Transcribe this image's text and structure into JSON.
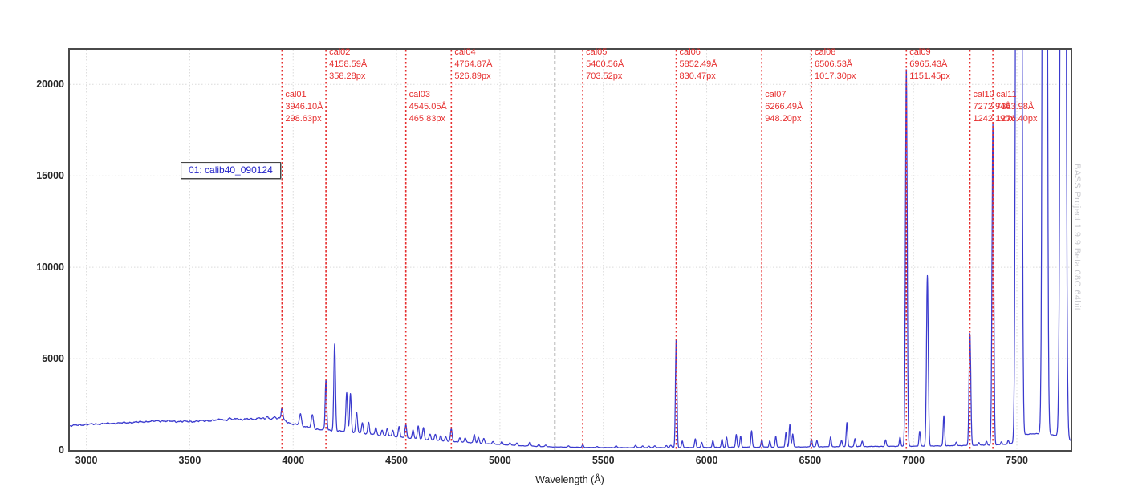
{
  "legend": {
    "text": "01: calib40_090124"
  },
  "watermark": {
    "text": "BASS Project 1.9.9 Beta 08C 64bit"
  },
  "colors": {
    "spectrum": "#3a3ace",
    "calibration_line": "#e62e2e",
    "cursor_line": "#141414",
    "grid": "#dadada",
    "axis_border": "#4a4a4a",
    "tick_text": "#262626",
    "legend_text": "#2424c8",
    "watermark_text": "#c8c8cd"
  },
  "chart_data": {
    "type": "line",
    "title": "",
    "xlabel": "Wavelength (Å)",
    "ylabel": "",
    "xlim": [
      2920,
      7760
    ],
    "ylim": [
      0,
      21900
    ],
    "x_ticks": [
      3000,
      3500,
      4000,
      4500,
      5000,
      5500,
      6000,
      6500,
      7000,
      7500
    ],
    "y_ticks": [
      0,
      5000,
      10000,
      15000,
      20000
    ],
    "grid": true,
    "legend_position": "top-left-inside",
    "series_name": "01: calib40_090124",
    "cursor_marker": {
      "wavelength": 5266
    },
    "cal_markers": [
      {
        "id": "cal01",
        "wl": 3946.1,
        "wavelength_A": "3946.10Å",
        "pixel_pos": "298.63px",
        "label_row": 2
      },
      {
        "id": "cal02",
        "wl": 4158.59,
        "wavelength_A": "4158.59Å",
        "pixel_pos": "358.28px",
        "label_row": 1
      },
      {
        "id": "cal03",
        "wl": 4545.05,
        "wavelength_A": "4545.05Å",
        "pixel_pos": "465.83px",
        "label_row": 2
      },
      {
        "id": "cal04",
        "wl": 4764.87,
        "wavelength_A": "4764.87Å",
        "pixel_pos": "526.89px",
        "label_row": 1
      },
      {
        "id": "cal05",
        "wl": 5400.56,
        "wavelength_A": "5400.56Å",
        "pixel_pos": "703.52px",
        "label_row": 1
      },
      {
        "id": "cal06",
        "wl": 5852.49,
        "wavelength_A": "5852.49Å",
        "pixel_pos": "830.47px",
        "label_row": 1
      },
      {
        "id": "cal07",
        "wl": 6266.49,
        "wavelength_A": "6266.49Å",
        "pixel_pos": "948.20px",
        "label_row": 2
      },
      {
        "id": "cal08",
        "wl": 6506.53,
        "wavelength_A": "6506.53Å",
        "pixel_pos": "1017.30px",
        "label_row": 1
      },
      {
        "id": "cal09",
        "wl": 6965.43,
        "wavelength_A": "6965.43Å",
        "pixel_pos": "1151.45px",
        "label_row": 1
      },
      {
        "id": "cal10",
        "wl": 7272.94,
        "wavelength_A": "7272.94Å",
        "pixel_pos": "1242.19px",
        "label_row": 2
      },
      {
        "id": "cal11",
        "wl": 7383.98,
        "wavelength_A": "7383.98Å",
        "pixel_pos": "1276.40px",
        "label_row": 2
      }
    ],
    "continuum_points": [
      [
        2920,
        1330
      ],
      [
        3000,
        1400
      ],
      [
        3100,
        1450
      ],
      [
        3200,
        1500
      ],
      [
        3300,
        1560
      ],
      [
        3350,
        1600
      ],
      [
        3420,
        1570
      ],
      [
        3500,
        1560
      ],
      [
        3600,
        1620
      ],
      [
        3700,
        1660
      ],
      [
        3800,
        1700
      ],
      [
        3900,
        1730
      ],
      [
        3950,
        1700
      ],
      [
        3990,
        1420
      ],
      [
        4030,
        1380
      ],
      [
        4060,
        1280
      ],
      [
        4110,
        1150
      ],
      [
        4160,
        1100
      ],
      [
        4210,
        1050
      ],
      [
        4260,
        1000
      ],
      [
        4320,
        950
      ],
      [
        4400,
        820
      ],
      [
        4500,
        720
      ],
      [
        4600,
        620
      ],
      [
        4700,
        520
      ],
      [
        4800,
        440
      ],
      [
        4900,
        380
      ],
      [
        5000,
        300
      ],
      [
        5100,
        240
      ],
      [
        5200,
        190
      ],
      [
        5300,
        160
      ],
      [
        5450,
        140
      ],
      [
        5600,
        130
      ],
      [
        5750,
        135
      ],
      [
        5900,
        140
      ],
      [
        6050,
        145
      ],
      [
        6200,
        155
      ],
      [
        6350,
        160
      ],
      [
        6500,
        175
      ],
      [
        6650,
        185
      ],
      [
        6800,
        195
      ],
      [
        6950,
        210
      ],
      [
        7100,
        220
      ],
      [
        7250,
        250
      ],
      [
        7400,
        280
      ],
      [
        7430,
        300
      ],
      [
        7455,
        330
      ],
      [
        7480,
        380
      ],
      [
        7495,
        600
      ],
      [
        7545,
        850
      ],
      [
        7575,
        880
      ],
      [
        7600,
        900
      ],
      [
        7660,
        850
      ],
      [
        7690,
        800
      ],
      [
        7740,
        600
      ],
      [
        7760,
        520
      ]
    ],
    "emission_peaks": [
      [
        3650,
        70,
        6
      ],
      [
        3694,
        80,
        5
      ],
      [
        3729,
        90,
        5
      ],
      [
        3834,
        90,
        4
      ],
      [
        3875,
        100,
        4
      ],
      [
        3911,
        110,
        4
      ],
      [
        3946.1,
        640,
        4
      ],
      [
        4035,
        620,
        5
      ],
      [
        4093,
        730,
        5
      ],
      [
        4158.59,
        2750,
        3.6
      ],
      [
        4200.67,
        4760,
        4
      ],
      [
        4259,
        2150,
        4
      ],
      [
        4277,
        2120,
        4
      ],
      [
        4307,
        1080,
        4
      ],
      [
        4335,
        560,
        4
      ],
      [
        4365,
        640,
        4
      ],
      [
        4400,
        430,
        4
      ],
      [
        4430,
        330,
        4
      ],
      [
        4455,
        400,
        4
      ],
      [
        4482,
        360,
        4
      ],
      [
        4512,
        580,
        4
      ],
      [
        4545.05,
        680,
        4
      ],
      [
        4580,
        470,
        4
      ],
      [
        4605,
        680,
        4
      ],
      [
        4630,
        640,
        4
      ],
      [
        4662,
        330,
        4
      ],
      [
        4688,
        330,
        4
      ],
      [
        4714,
        280,
        4
      ],
      [
        4738,
        240,
        4
      ],
      [
        4764.87,
        690,
        4
      ],
      [
        4806,
        240,
        4
      ],
      [
        4832,
        240,
        4
      ],
      [
        4876,
        470,
        4
      ],
      [
        4896,
        300,
        4
      ],
      [
        4922,
        260,
        4
      ],
      [
        4966,
        150,
        4
      ],
      [
        5010,
        170,
        4
      ],
      [
        5048,
        120,
        4
      ],
      [
        5082,
        120,
        4
      ],
      [
        5145,
        210,
        4
      ],
      [
        5188,
        100,
        4
      ],
      [
        5222,
        80,
        4
      ],
      [
        5332,
        80,
        4
      ],
      [
        5400.56,
        150,
        3.4
      ],
      [
        5470,
        60,
        4
      ],
      [
        5562,
        100,
        4
      ],
      [
        5656,
        130,
        4
      ],
      [
        5690,
        90,
        4
      ],
      [
        5720,
        80,
        4
      ],
      [
        5749,
        90,
        4
      ],
      [
        5805,
        100,
        4
      ],
      [
        5826,
        120,
        4
      ],
      [
        5852.49,
        5950,
        3.6
      ],
      [
        5882,
        350,
        3.4
      ],
      [
        5945,
        480,
        3.4
      ],
      [
        5976,
        280,
        3.4
      ],
      [
        6030,
        380,
        3.4
      ],
      [
        6074,
        450,
        3.4
      ],
      [
        6096,
        560,
        3.4
      ],
      [
        6143,
        700,
        3.4
      ],
      [
        6164,
        620,
        3.4
      ],
      [
        6217,
        900,
        3.4
      ],
      [
        6266.49,
        420,
        3.4
      ],
      [
        6305,
        350,
        3.4
      ],
      [
        6334,
        580,
        3.4
      ],
      [
        6383,
        800,
        3.4
      ],
      [
        6402,
        1250,
        3.4
      ],
      [
        6416,
        700,
        3.4
      ],
      [
        6506.53,
        430,
        3.4
      ],
      [
        6533,
        350,
        3.4
      ],
      [
        6599,
        530,
        3.4
      ],
      [
        6652,
        350,
        3.4
      ],
      [
        6678,
        1320,
        3.4
      ],
      [
        6717,
        430,
        3.4
      ],
      [
        6752,
        300,
        3.4
      ],
      [
        6865,
        360,
        3.4
      ],
      [
        6935,
        500,
        3.4
      ],
      [
        6965.43,
        20700,
        4.2
      ],
      [
        7030,
        800,
        3.4
      ],
      [
        7067.22,
        9350,
        4.2
      ],
      [
        7147,
        1650,
        3.4
      ],
      [
        7207,
        200,
        3.4
      ],
      [
        7272.94,
        6100,
        4.2
      ],
      [
        7316,
        150,
        3.4
      ],
      [
        7353,
        200,
        3.4
      ],
      [
        7383.98,
        17600,
        4.2
      ],
      [
        7425,
        150,
        3.4
      ],
      [
        7458,
        180,
        3.4
      ],
      [
        7503.87,
        100000,
        6.5
      ],
      [
        7514.65,
        100000,
        6.5
      ],
      [
        7635.11,
        150000,
        7
      ],
      [
        7723.8,
        150000,
        8
      ]
    ],
    "noise_amplitude": [
      [
        2920,
        40
      ],
      [
        3600,
        50
      ],
      [
        3960,
        45
      ],
      [
        4200,
        35
      ],
      [
        4600,
        25
      ],
      [
        5000,
        15
      ],
      [
        5400,
        8
      ],
      [
        5900,
        8
      ],
      [
        6300,
        12
      ],
      [
        6800,
        12
      ],
      [
        7100,
        12
      ],
      [
        7400,
        15
      ],
      [
        7760,
        15
      ]
    ]
  }
}
